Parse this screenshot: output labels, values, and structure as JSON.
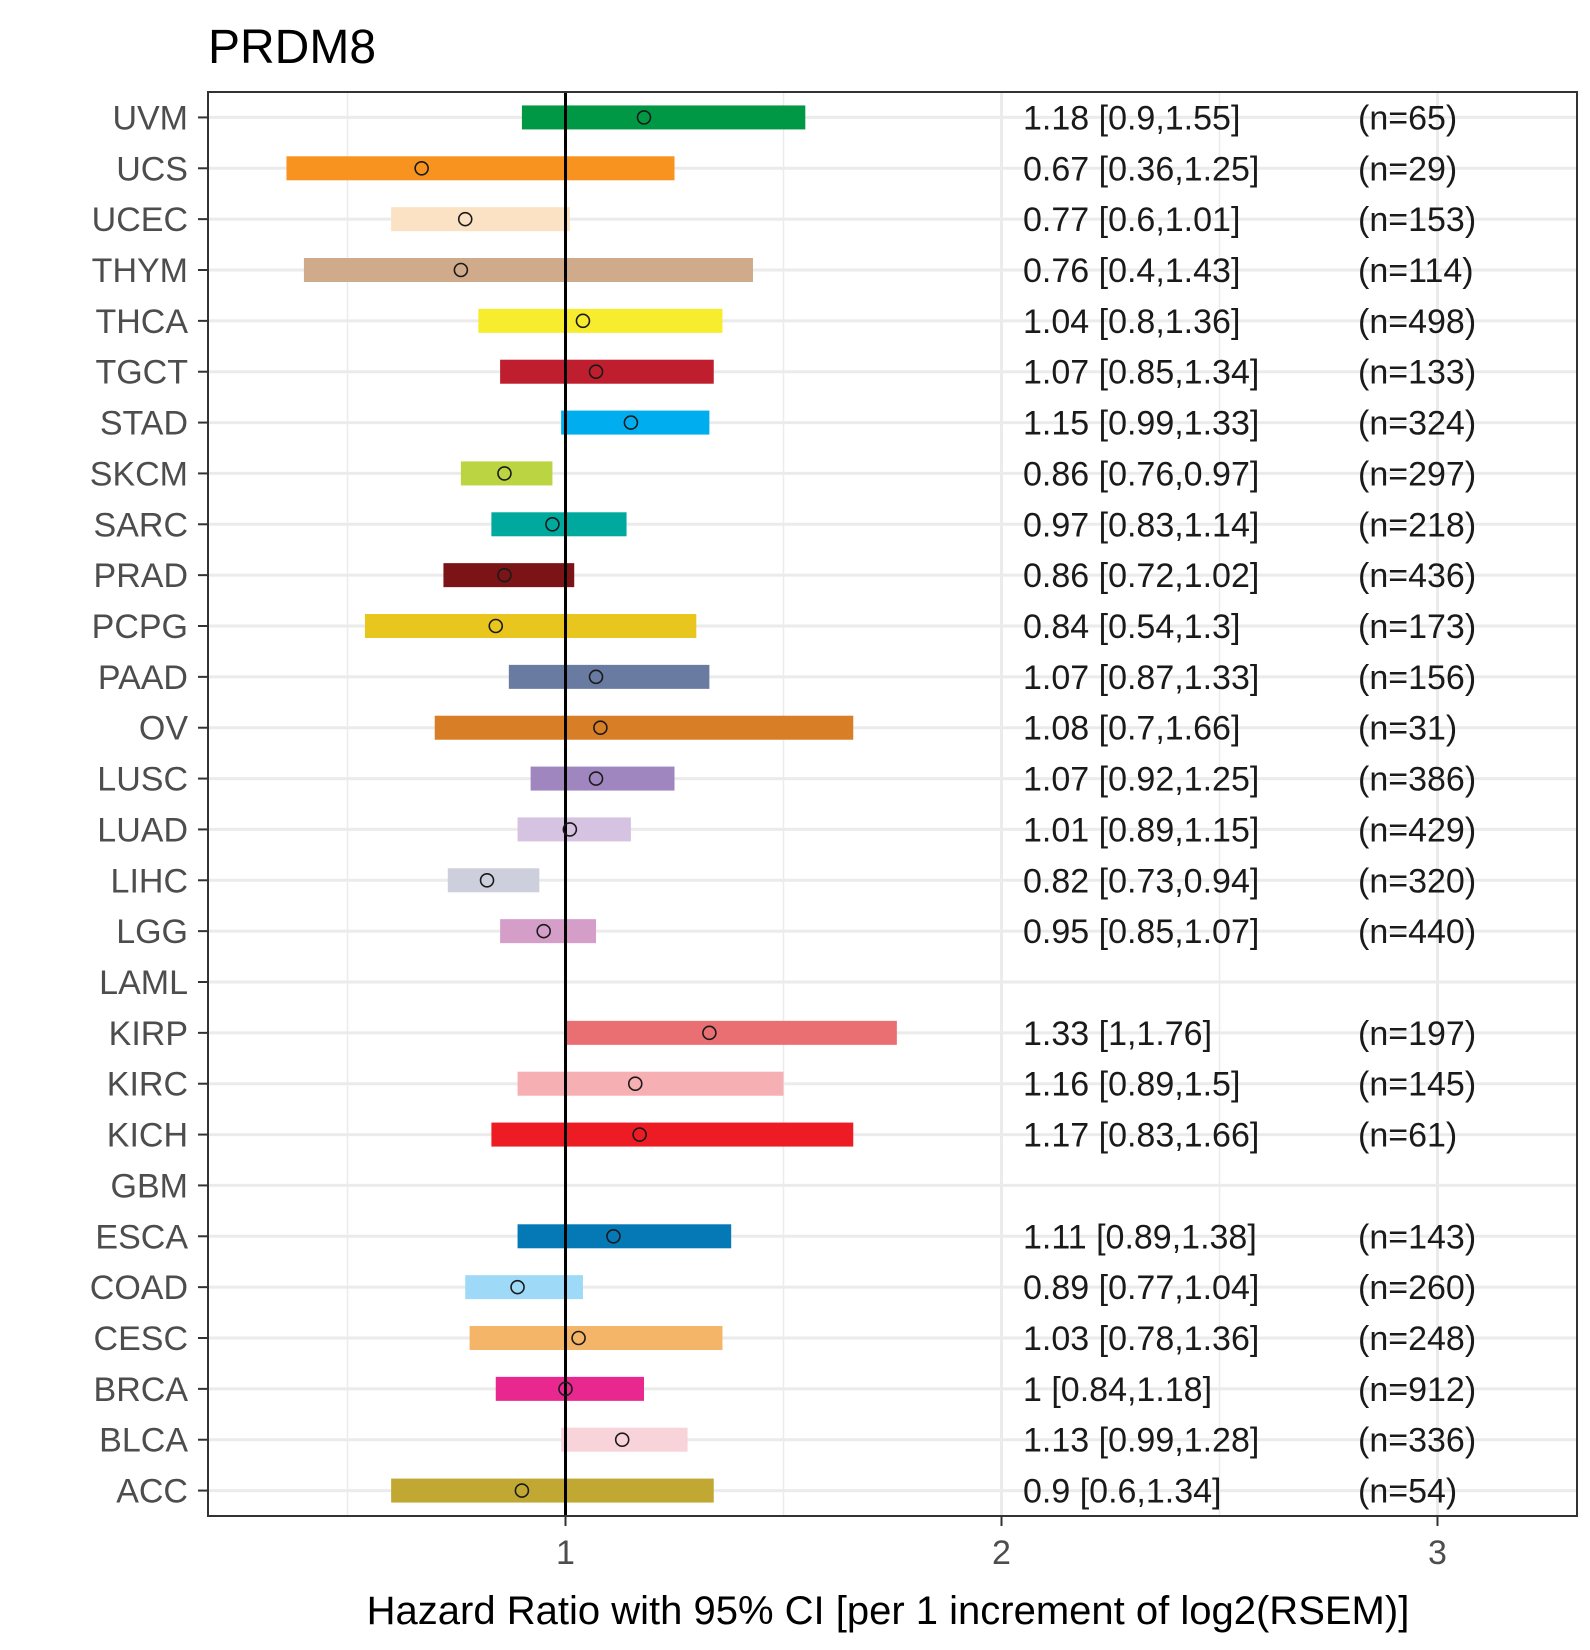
{
  "chart_data": {
    "type": "forest",
    "title": "PRDM8",
    "xlabel": "Hazard Ratio with 95% CI [per 1 increment of log2(RSEM)]",
    "ylabel": "",
    "xlim": [
      0.18,
      3.32
    ],
    "x_ticks": [
      1,
      2,
      3
    ],
    "x_tick_labels": [
      "1",
      "2",
      "3"
    ],
    "reference_line": 1,
    "grid": true,
    "rows": [
      {
        "label": "UVM",
        "hr": 1.18,
        "lo": 0.9,
        "hi": 1.55,
        "text": "1.18 [0.9,1.55]",
        "n": "(n=65)",
        "color": "#009845"
      },
      {
        "label": "UCS",
        "hr": 0.67,
        "lo": 0.36,
        "hi": 1.25,
        "text": "0.67 [0.36,1.25]",
        "n": "(n=29)",
        "color": "#F7931E"
      },
      {
        "label": "UCEC",
        "hr": 0.77,
        "lo": 0.6,
        "hi": 1.01,
        "text": "0.77 [0.6,1.01]",
        "n": "(n=153)",
        "color": "#FBE2C5"
      },
      {
        "label": "THYM",
        "hr": 0.76,
        "lo": 0.4,
        "hi": 1.43,
        "text": "0.76 [0.4,1.43]",
        "n": "(n=114)",
        "color": "#CFAA8B"
      },
      {
        "label": "THCA",
        "hr": 1.04,
        "lo": 0.8,
        "hi": 1.36,
        "text": "1.04 [0.8,1.36]",
        "n": "(n=498)",
        "color": "#F8EC2F"
      },
      {
        "label": "TGCT",
        "hr": 1.07,
        "lo": 0.85,
        "hi": 1.34,
        "text": "1.07 [0.85,1.34]",
        "n": "(n=133)",
        "color": "#BE1E2D"
      },
      {
        "label": "STAD",
        "hr": 1.15,
        "lo": 0.99,
        "hi": 1.33,
        "text": "1.15 [0.99,1.33]",
        "n": "(n=324)",
        "color": "#00AEEF"
      },
      {
        "label": "SKCM",
        "hr": 0.86,
        "lo": 0.76,
        "hi": 0.97,
        "text": "0.86 [0.76,0.97]",
        "n": "(n=297)",
        "color": "#BBD441"
      },
      {
        "label": "SARC",
        "hr": 0.97,
        "lo": 0.83,
        "hi": 1.14,
        "text": "0.97 [0.83,1.14]",
        "n": "(n=218)",
        "color": "#00A99D"
      },
      {
        "label": "PRAD",
        "hr": 0.86,
        "lo": 0.72,
        "hi": 1.02,
        "text": "0.86 [0.72,1.02]",
        "n": "(n=436)",
        "color": "#7A1416"
      },
      {
        "label": "PCPG",
        "hr": 0.84,
        "lo": 0.54,
        "hi": 1.3,
        "text": "0.84 [0.54,1.3]",
        "n": "(n=173)",
        "color": "#E9C61E"
      },
      {
        "label": "PAAD",
        "hr": 1.07,
        "lo": 0.87,
        "hi": 1.33,
        "text": "1.07 [0.87,1.33]",
        "n": "(n=156)",
        "color": "#6A7BA2"
      },
      {
        "label": "OV",
        "hr": 1.08,
        "lo": 0.7,
        "hi": 1.66,
        "text": "1.08 [0.7,1.66]",
        "n": "(n=31)",
        "color": "#D87E27"
      },
      {
        "label": "LUSC",
        "hr": 1.07,
        "lo": 0.92,
        "hi": 1.25,
        "text": "1.07 [0.92,1.25]",
        "n": "(n=386)",
        "color": "#A086BF"
      },
      {
        "label": "LUAD",
        "hr": 1.01,
        "lo": 0.89,
        "hi": 1.15,
        "text": "1.01 [0.89,1.15]",
        "n": "(n=429)",
        "color": "#D5C3E1"
      },
      {
        "label": "LIHC",
        "hr": 0.82,
        "lo": 0.73,
        "hi": 0.94,
        "text": "0.82 [0.73,0.94]",
        "n": "(n=320)",
        "color": "#CDCFDD"
      },
      {
        "label": "LGG",
        "hr": 0.95,
        "lo": 0.85,
        "hi": 1.07,
        "text": "0.95 [0.85,1.07]",
        "n": "(n=440)",
        "color": "#D49EC8"
      },
      {
        "label": "LAML",
        "hr": null,
        "lo": null,
        "hi": null,
        "text": "",
        "n": "",
        "color": "#cccccc"
      },
      {
        "label": "KIRP",
        "hr": 1.33,
        "lo": 1,
        "hi": 1.76,
        "text": "1.33 [1,1.76]",
        "n": "(n=197)",
        "color": "#EA6F73"
      },
      {
        "label": "KIRC",
        "hr": 1.16,
        "lo": 0.89,
        "hi": 1.5,
        "text": "1.16 [0.89,1.5]",
        "n": "(n=145)",
        "color": "#F6AFB3"
      },
      {
        "label": "KICH",
        "hr": 1.17,
        "lo": 0.83,
        "hi": 1.66,
        "text": "1.17 [0.83,1.66]",
        "n": "(n=61)",
        "color": "#ED1C24"
      },
      {
        "label": "GBM",
        "hr": null,
        "lo": null,
        "hi": null,
        "text": "",
        "n": "",
        "color": "#cccccc"
      },
      {
        "label": "ESCA",
        "hr": 1.11,
        "lo": 0.89,
        "hi": 1.38,
        "text": "1.11 [0.89,1.38]",
        "n": "(n=143)",
        "color": "#0479B6"
      },
      {
        "label": "COAD",
        "hr": 0.89,
        "lo": 0.77,
        "hi": 1.04,
        "text": "0.89 [0.77,1.04]",
        "n": "(n=260)",
        "color": "#9EDAF7"
      },
      {
        "label": "CESC",
        "hr": 1.03,
        "lo": 0.78,
        "hi": 1.36,
        "text": "1.03 [0.78,1.36]",
        "n": "(n=248)",
        "color": "#F4B568"
      },
      {
        "label": "BRCA",
        "hr": 1,
        "lo": 0.84,
        "hi": 1.18,
        "text": "1 [0.84,1.18]",
        "n": "(n=912)",
        "color": "#E8288E"
      },
      {
        "label": "BLCA",
        "hr": 1.13,
        "lo": 0.99,
        "hi": 1.28,
        "text": "1.13 [0.99,1.28]",
        "n": "(n=336)",
        "color": "#F8D3DA"
      },
      {
        "label": "ACC",
        "hr": 0.9,
        "lo": 0.6,
        "hi": 1.34,
        "text": "0.9 [0.6,1.34]",
        "n": "(n=54)",
        "color": "#C1A833"
      }
    ]
  }
}
